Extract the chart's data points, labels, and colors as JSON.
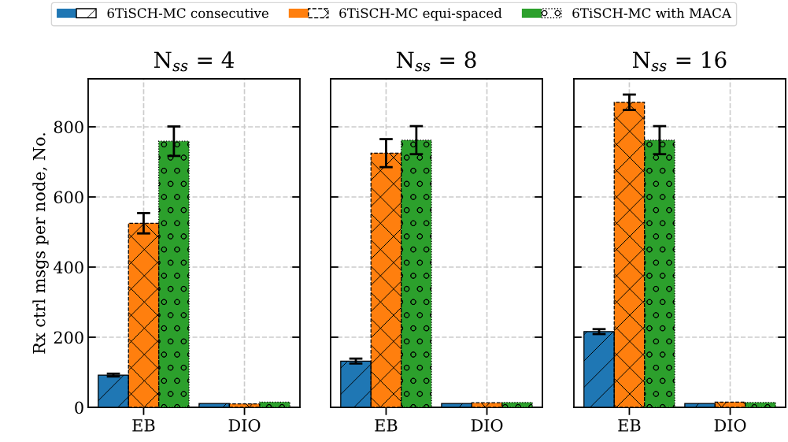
{
  "chart_data": [
    {
      "type": "bar",
      "title": "N$_{ss}$ = 4",
      "ylabel": "Rx ctrl msgs per node, No.",
      "categories": [
        "EB",
        "DIO"
      ],
      "ylim": [
        0,
        937
      ],
      "yticks": [
        0,
        200,
        400,
        600,
        800
      ],
      "grid": true,
      "legend": "top",
      "series": [
        {
          "name": "6TiSCH-MC consecutive",
          "color": "#1f77b4",
          "line_style": "solid",
          "values": [
            92,
            11
          ],
          "errors": [
            4,
            null
          ]
        },
        {
          "name": "6TiSCH-MC equi-spaced",
          "color": "#ff7f0e",
          "line_style": "dashed",
          "values": [
            525,
            10
          ],
          "errors": [
            29,
            null
          ]
        },
        {
          "name": "6TiSCH-MC with MACA",
          "color": "#2ca02c",
          "line_style": "dotted",
          "values": [
            759,
            15
          ],
          "errors": [
            42,
            null
          ]
        }
      ]
    },
    {
      "type": "bar",
      "title": "N$_{ss}$ = 8",
      "categories": [
        "EB",
        "DIO"
      ],
      "ylim": [
        0,
        937
      ],
      "yticks": [
        0,
        200,
        400,
        600,
        800
      ],
      "grid": true,
      "tick_labels": "x",
      "series": [
        {
          "color": "#1f77b4",
          "line_style": "solid",
          "values": [
            132,
            11
          ],
          "errors": [
            7,
            null
          ]
        },
        {
          "color": "#ff7f0e",
          "line_style": "dashed",
          "values": [
            725,
            13
          ],
          "errors": [
            40,
            null
          ]
        },
        {
          "color": "#2ca02c",
          "line_style": "dotted",
          "values": [
            762,
            14
          ],
          "errors": [
            40,
            null
          ]
        }
      ]
    },
    {
      "type": "bar",
      "title": "N$_{ss}$ = 16",
      "categories": [
        "EB",
        "DIO"
      ],
      "ylim": [
        0,
        937
      ],
      "yticks": [
        0,
        200,
        400,
        600,
        800
      ],
      "grid": true,
      "tick_labels": "x",
      "series": [
        {
          "color": "#1f77b4",
          "line_style": "solid",
          "values": [
            216,
            11
          ],
          "errors": [
            7,
            null
          ]
        },
        {
          "color": "#ff7f0e",
          "line_style": "dashed",
          "values": [
            870,
            15
          ],
          "errors": [
            22,
            null
          ]
        },
        {
          "color": "#2ca02c",
          "line_style": "dotted",
          "values": [
            762,
            14
          ],
          "errors": [
            40,
            null
          ]
        }
      ]
    }
  ]
}
